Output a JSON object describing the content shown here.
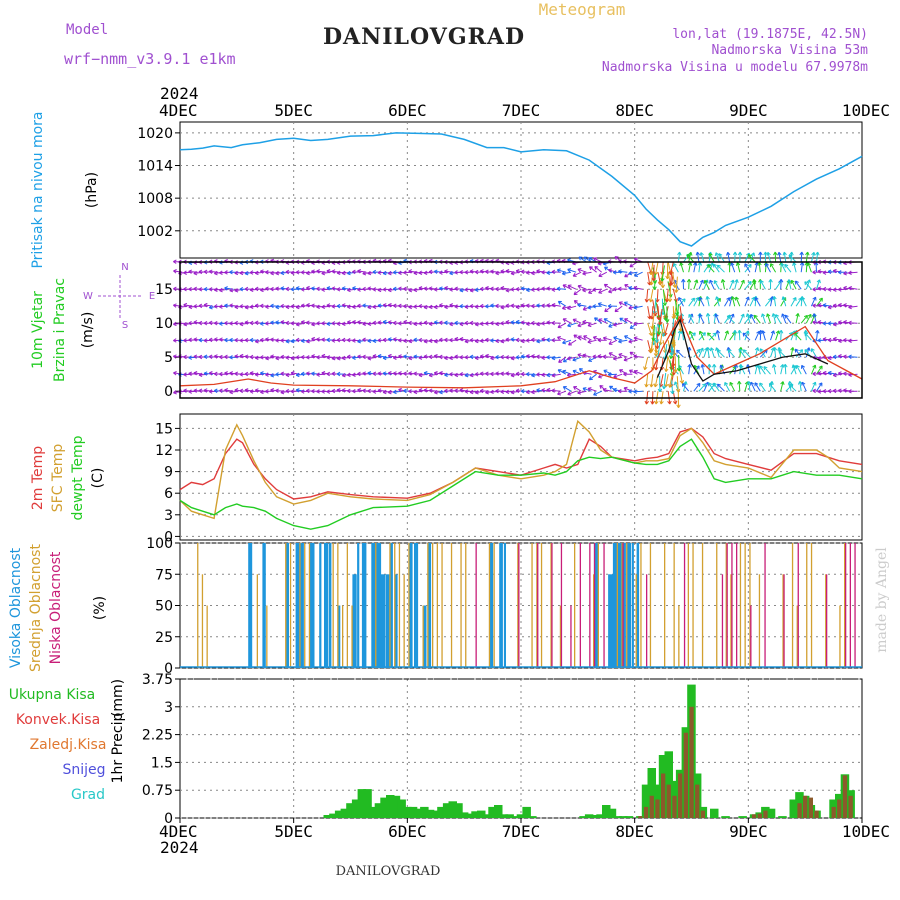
{
  "header": {
    "model_label": "Model",
    "model_name": "wrf−nmm_v3.9.1  e1km",
    "title": "DANILOVGRAD",
    "subtitle": "Meteogram",
    "coords": "lon,lat (19.1875E, 42.5N)",
    "elevation": "Nadmorska Visina 53m",
    "model_elevation": "Nadmorska Visina u modelu 67.9978m"
  },
  "footer": {
    "station": "DANILOVGRAD",
    "watermark": "made by Angel"
  },
  "time_axis": {
    "year": "2024",
    "ticks": [
      "4DEC",
      "5DEC",
      "6DEC",
      "7DEC",
      "8DEC",
      "9DEC",
      "10DEC"
    ]
  },
  "colors": {
    "pressure": "#1ea0e6",
    "wind_label": "#22cc22",
    "wind_arrows_primary": "#9a1ec8",
    "wind_arrows_secondary": "#1e64f0",
    "wind_arrows_cyan": "#1ec8d2",
    "wind_speed_line": "#e04020",
    "t2m": "#e03c3c",
    "tsfc": "#d2a030",
    "dewpoint": "#22cc22",
    "high_cloud": "#1e96dc",
    "mid_cloud": "#d2a030",
    "low_cloud": "#c81e78",
    "precip_total": "#22bb22",
    "precip_conv": "#e03c3c",
    "precip_frozen": "#e07830",
    "precip_snow": "#5050dc",
    "precip_hail": "#28c8c8",
    "title": "#222222",
    "model_text": "#a050d0"
  },
  "chart_data": [
    {
      "type": "line",
      "panel": "pressure",
      "ylabel": "Pritisak na nivou mora",
      "yunit": "(hPa)",
      "ylim": [
        997,
        1022
      ],
      "yticks": [
        1002,
        1008,
        1014,
        1020
      ],
      "series": [
        {
          "x_days": [
            0,
            0.1,
            0.2,
            0.3,
            0.45,
            0.55,
            0.7,
            0.85,
            1.0,
            1.15,
            1.3,
            1.5,
            1.7,
            1.9,
            2.1,
            2.3,
            2.5,
            2.7,
            2.85,
            3.0,
            3.2,
            3.4,
            3.6,
            3.8,
            4.0,
            4.1,
            4.2,
            4.3,
            4.4,
            4.5,
            4.6,
            4.7,
            4.8,
            5.0,
            5.2,
            5.4,
            5.6,
            5.8,
            6.0
          ],
          "values": [
            1016.9,
            1017,
            1017.2,
            1017.6,
            1017.3,
            1017.8,
            1018.2,
            1018.8,
            1019,
            1018.6,
            1018.8,
            1019.4,
            1019.5,
            1020,
            1019.9,
            1019.8,
            1018.8,
            1017.3,
            1017.3,
            1016.5,
            1016.9,
            1016.7,
            1015,
            1012,
            1008.5,
            1006,
            1004,
            1002.2,
            1000,
            999.2,
            1000.8,
            1001.7,
            1003,
            1004.5,
            1006.5,
            1009.2,
            1011.5,
            1013.4,
            1015.7
          ]
        }
      ]
    },
    {
      "type": "vector",
      "panel": "wind",
      "ylabel": "10m Vjetar",
      "ylabel2": "Brzina i Pravac",
      "yunit": "(m/s)",
      "compass": [
        "N",
        "W",
        "E",
        "S"
      ],
      "ylim": [
        -1,
        19
      ],
      "yticks": [
        0,
        5,
        10,
        15
      ],
      "arrow_rows": [
        0,
        2.5,
        5,
        7.5,
        10,
        12.5,
        15,
        17.5,
        19
      ],
      "speed_line": {
        "x_days": [
          0,
          0.3,
          0.6,
          0.8,
          1.0,
          1.5,
          2.0,
          2.5,
          3.0,
          3.3,
          3.6,
          3.8,
          4.0,
          4.15,
          4.25,
          4.4,
          4.55,
          4.7,
          4.9,
          5.1,
          5.3,
          5.5,
          5.7,
          6.0
        ],
        "values": [
          0.8,
          1,
          1.8,
          1.2,
          0.9,
          0.8,
          0.6,
          0.5,
          0.8,
          1.4,
          3.0,
          2.0,
          1.2,
          3.0,
          6.5,
          11,
          5.0,
          2.5,
          4.0,
          5.5,
          7.5,
          9.5,
          4.5,
          1.8
        ]
      },
      "gust_line": {
        "x_days": [
          4.2,
          4.3,
          4.35,
          4.4,
          4.5,
          4.6,
          4.7,
          4.9,
          5.1,
          5.3,
          5.5,
          5.7
        ],
        "values": [
          2,
          6,
          9,
          10.5,
          4,
          1.5,
          2.5,
          3,
          4,
          5,
          5.5,
          4
        ]
      }
    },
    {
      "type": "line",
      "panel": "temperature",
      "ylabels": [
        "2m Temp",
        "SFC Temp",
        "dewpt Temp"
      ],
      "yunit": "(C)",
      "ylim": [
        -0.5,
        17
      ],
      "yticks": [
        0,
        3,
        6,
        9,
        12,
        15
      ],
      "x_days": [
        0,
        0.1,
        0.2,
        0.3,
        0.4,
        0.5,
        0.55,
        0.65,
        0.75,
        0.85,
        1.0,
        1.15,
        1.3,
        1.5,
        1.7,
        2.0,
        2.2,
        2.4,
        2.6,
        2.8,
        3.0,
        3.2,
        3.3,
        3.4,
        3.5,
        3.6,
        3.7,
        3.8,
        4.0,
        4.1,
        4.2,
        4.3,
        4.4,
        4.5,
        4.6,
        4.7,
        4.8,
        5.0,
        5.2,
        5.4,
        5.6,
        5.7,
        5.8,
        6.0
      ],
      "series": [
        {
          "name": "2m Temp",
          "values": [
            6.5,
            7.5,
            7.2,
            8.0,
            11.5,
            13.5,
            13.0,
            10.0,
            8.0,
            6.5,
            5.2,
            5.5,
            6.2,
            5.8,
            5.5,
            5.3,
            6.0,
            7.5,
            9.5,
            9.0,
            8.5,
            9.5,
            10.0,
            9.5,
            10.0,
            13.5,
            12.5,
            11.0,
            10.5,
            10.8,
            11.0,
            11.5,
            14.5,
            15.0,
            13.8,
            11.5,
            10.8,
            10.0,
            9.2,
            11.5,
            11.5,
            11.0,
            10.5,
            10.0
          ]
        },
        {
          "name": "SFC Temp",
          "values": [
            5,
            3.5,
            3.0,
            2.5,
            12.0,
            15.5,
            14.0,
            10.5,
            7.5,
            5.5,
            4.5,
            5.0,
            6.0,
            5.5,
            5.2,
            5.0,
            5.8,
            7.5,
            9.5,
            8.5,
            8.0,
            8.5,
            9.0,
            10.0,
            16.0,
            14.5,
            12.0,
            11.0,
            10.2,
            10.5,
            10.5,
            10.8,
            14.0,
            15.0,
            13.0,
            10.5,
            10.0,
            9.5,
            8.2,
            12.0,
            12.0,
            11.0,
            9.5,
            9.0
          ]
        },
        {
          "name": "dewpt Temp",
          "values": [
            5,
            4.0,
            3.5,
            3.0,
            4.0,
            4.5,
            4.2,
            4.0,
            3.5,
            2.5,
            1.5,
            1.0,
            1.5,
            3.0,
            4.0,
            4.2,
            5.0,
            7.0,
            9.0,
            8.5,
            8.5,
            8.8,
            8.5,
            9.0,
            10.5,
            11.0,
            10.8,
            11.0,
            10.2,
            10.0,
            10.0,
            10.5,
            12.5,
            13.5,
            11.0,
            8.0,
            7.5,
            8.0,
            8.0,
            9.0,
            8.5,
            8.5,
            8.5,
            8.0
          ]
        }
      ]
    },
    {
      "type": "bar",
      "panel": "cloud",
      "ylabels": [
        "Visoka Oblacnost",
        "Srednja Oblacnost",
        "Niska Oblacnost"
      ],
      "yunit": "(%)",
      "ylim": [
        0,
        100
      ],
      "yticks": [
        0,
        25,
        50,
        75,
        100
      ],
      "segments": [
        {
          "name": "Visoka Oblacnost",
          "x_start": 0.6,
          "x_end": 2.2,
          "density": 0.5
        },
        {
          "name": "Visoka Oblacnost",
          "x_start": 2.6,
          "x_end": 3.0,
          "density": 0.3
        },
        {
          "name": "Visoka Oblacnost",
          "x_start": 3.6,
          "x_end": 4.05,
          "density": 0.7
        },
        {
          "name": "Srednja Oblacnost",
          "x_start": 0.15,
          "x_end": 0.25,
          "density": 0.6
        },
        {
          "name": "Srednja Oblacnost",
          "x_start": 0.55,
          "x_end": 6.0,
          "density": 0.45
        },
        {
          "name": "Niska Oblacnost",
          "x_start": 2.6,
          "x_end": 6.0,
          "density": 0.35
        }
      ]
    },
    {
      "type": "bar",
      "panel": "precip",
      "ylabels": [
        "Ukupna Kisa",
        "Konvek.Kisa",
        "Zaledj.Kisa",
        "Snijeg",
        "Grad"
      ],
      "yaxis_label": "1hr Precip",
      "yunit": "(mm)",
      "ylim": [
        0,
        3.75
      ],
      "yticks": [
        0,
        0.75,
        1.5,
        2.25,
        3,
        3.75
      ],
      "total": {
        "x_days": [
          1.3,
          1.35,
          1.4,
          1.45,
          1.5,
          1.55,
          1.6,
          1.65,
          1.7,
          1.75,
          1.8,
          1.85,
          1.9,
          1.95,
          2.0,
          2.05,
          2.1,
          2.15,
          2.2,
          2.25,
          2.3,
          2.35,
          2.4,
          2.45,
          2.5,
          2.55,
          2.6,
          2.65,
          2.7,
          2.75,
          2.8,
          2.85,
          2.9,
          2.95,
          3.0,
          3.05,
          3.1,
          3.55,
          3.6,
          3.65,
          3.7,
          3.75,
          3.8,
          3.85,
          3.9,
          3.95,
          4.05,
          4.1,
          4.15,
          4.2,
          4.25,
          4.3,
          4.35,
          4.4,
          4.45,
          4.5,
          4.55,
          4.6,
          4.7,
          4.8,
          4.95,
          5.05,
          5.1,
          5.15,
          5.2,
          5.3,
          5.4,
          5.45,
          5.5,
          5.55,
          5.6,
          5.75,
          5.8,
          5.85,
          5.9
        ],
        "values": [
          0.08,
          0.12,
          0.2,
          0.25,
          0.4,
          0.5,
          0.78,
          0.78,
          0.3,
          0.4,
          0.55,
          0.62,
          0.6,
          0.5,
          0.3,
          0.3,
          0.25,
          0.3,
          0.22,
          0.2,
          0.3,
          0.4,
          0.45,
          0.4,
          0.15,
          0.12,
          0.18,
          0.2,
          0.1,
          0.3,
          0.35,
          0.1,
          0.1,
          0.05,
          0.1,
          0.3,
          0.05,
          0.05,
          0.1,
          0.08,
          0.1,
          0.35,
          0.25,
          0.05,
          0.05,
          0.05,
          0.05,
          0.9,
          1.35,
          0.9,
          1.7,
          1.8,
          1.0,
          1.3,
          2.45,
          3.6,
          1.2,
          0.3,
          0.25,
          0.05,
          0.05,
          0.1,
          0.15,
          0.3,
          0.25,
          0.05,
          0.5,
          0.7,
          0.6,
          0.35,
          0.2,
          0.5,
          0.65,
          1.18,
          0.75
        ]
      },
      "convective": {
        "x_days": [
          4.05,
          4.1,
          4.15,
          4.2,
          4.25,
          4.3,
          4.35,
          4.4,
          4.45,
          4.5,
          4.55,
          4.6,
          5.05,
          5.1,
          5.15,
          5.45,
          5.5,
          5.55,
          5.6,
          5.75,
          5.8,
          5.85,
          5.9
        ],
        "values": [
          0.05,
          0.3,
          0.6,
          0.5,
          1.2,
          0.9,
          0.6,
          1.2,
          2.3,
          3.0,
          0.9,
          0.2,
          0.1,
          0.12,
          0.2,
          0.4,
          0.6,
          0.55,
          0.2,
          0.3,
          0.5,
          1.15,
          0.6
        ]
      }
    }
  ]
}
